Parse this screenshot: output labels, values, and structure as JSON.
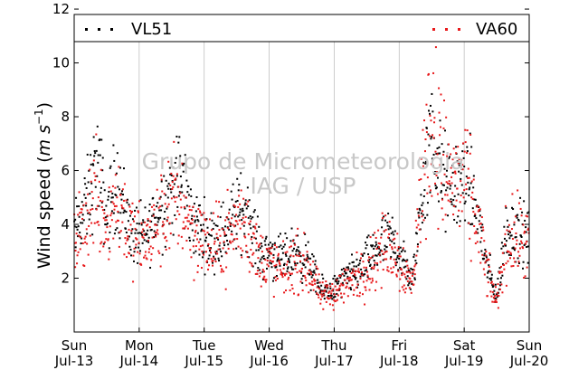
{
  "chart_data": {
    "type": "scatter",
    "title": "",
    "ylabel_main": "Wind speed (",
    "ylabel_unit": "m s",
    "ylabel_exp": "−1",
    "ylabel_close": ")",
    "xlim_days": [
      0,
      7
    ],
    "ylim": [
      0,
      11.8
    ],
    "yticks": [
      2,
      4,
      6,
      8,
      10,
      12
    ],
    "grid": "vertical",
    "legend_position": "top",
    "x_ticks": [
      {
        "day": "Sun",
        "date": "Jul-13"
      },
      {
        "day": "Mon",
        "date": "Jul-14"
      },
      {
        "day": "Tue",
        "date": "Jul-15"
      },
      {
        "day": "Wed",
        "date": "Jul-16"
      },
      {
        "day": "Thu",
        "date": "Jul-17"
      },
      {
        "day": "Fri",
        "date": "Jul-18"
      },
      {
        "day": "Sat",
        "date": "Jul-19"
      },
      {
        "day": "Sun",
        "date": "Jul-20"
      }
    ],
    "series": [
      {
        "name": "VL51",
        "color": "#000000",
        "daily_profile": [
          [
            0.0,
            3.6
          ],
          [
            0.2,
            4.8
          ],
          [
            0.35,
            6.4
          ],
          [
            0.5,
            4.3
          ],
          [
            0.65,
            5.6
          ],
          [
            0.8,
            4.4
          ],
          [
            0.9,
            3.6
          ],
          [
            1.1,
            3.5
          ],
          [
            1.3,
            4.6
          ],
          [
            1.5,
            5.3
          ],
          [
            1.65,
            5.8
          ],
          [
            1.8,
            4.3
          ],
          [
            1.95,
            3.8
          ],
          [
            2.1,
            3.4
          ],
          [
            2.3,
            3.7
          ],
          [
            2.5,
            4.4
          ],
          [
            2.65,
            4.6
          ],
          [
            2.85,
            2.9
          ],
          [
            3.0,
            3.0
          ],
          [
            3.2,
            2.6
          ],
          [
            3.4,
            3.0
          ],
          [
            3.6,
            2.6
          ],
          [
            3.8,
            1.5
          ],
          [
            4.0,
            1.6
          ],
          [
            4.2,
            2.0
          ],
          [
            4.4,
            2.3
          ],
          [
            4.55,
            2.7
          ],
          [
            4.7,
            3.2
          ],
          [
            4.9,
            3.4
          ],
          [
            5.1,
            2.4
          ],
          [
            5.2,
            1.8
          ],
          [
            5.35,
            5.0
          ],
          [
            5.5,
            7.2
          ],
          [
            5.65,
            5.8
          ],
          [
            5.8,
            5.2
          ],
          [
            6.0,
            5.8
          ],
          [
            6.2,
            4.5
          ],
          [
            6.35,
            2.4
          ],
          [
            6.5,
            1.3
          ],
          [
            6.65,
            3.8
          ],
          [
            6.8,
            3.8
          ],
          [
            7.0,
            3.4
          ]
        ]
      },
      {
        "name": "VA60",
        "color": "#e8191b",
        "daily_profile": [
          [
            0.0,
            3.2
          ],
          [
            0.2,
            4.2
          ],
          [
            0.35,
            5.4
          ],
          [
            0.5,
            4.0
          ],
          [
            0.65,
            5.0
          ],
          [
            0.8,
            4.2
          ],
          [
            0.9,
            3.4
          ],
          [
            1.1,
            3.3
          ],
          [
            1.3,
            4.0
          ],
          [
            1.5,
            4.8
          ],
          [
            1.65,
            4.9
          ],
          [
            1.8,
            3.9
          ],
          [
            1.95,
            3.5
          ],
          [
            2.1,
            3.1
          ],
          [
            2.3,
            3.4
          ],
          [
            2.5,
            4.0
          ],
          [
            2.65,
            4.0
          ],
          [
            2.85,
            2.7
          ],
          [
            3.0,
            2.6
          ],
          [
            3.2,
            2.2
          ],
          [
            3.4,
            2.6
          ],
          [
            3.6,
            2.4
          ],
          [
            3.8,
            1.3
          ],
          [
            4.0,
            1.5
          ],
          [
            4.2,
            1.8
          ],
          [
            4.4,
            2.1
          ],
          [
            4.55,
            2.5
          ],
          [
            4.7,
            3.0
          ],
          [
            4.9,
            3.2
          ],
          [
            5.1,
            2.2
          ],
          [
            5.2,
            1.7
          ],
          [
            5.35,
            5.6
          ],
          [
            5.5,
            8.2
          ],
          [
            5.65,
            6.3
          ],
          [
            5.8,
            5.6
          ],
          [
            6.0,
            5.5
          ],
          [
            6.2,
            4.2
          ],
          [
            6.35,
            2.2
          ],
          [
            6.5,
            1.1
          ],
          [
            6.65,
            3.4
          ],
          [
            6.8,
            3.5
          ],
          [
            7.0,
            3.2
          ]
        ]
      }
    ],
    "watermark": [
      "Grupo de Micrometeorologia",
      "IAG / USP"
    ]
  }
}
